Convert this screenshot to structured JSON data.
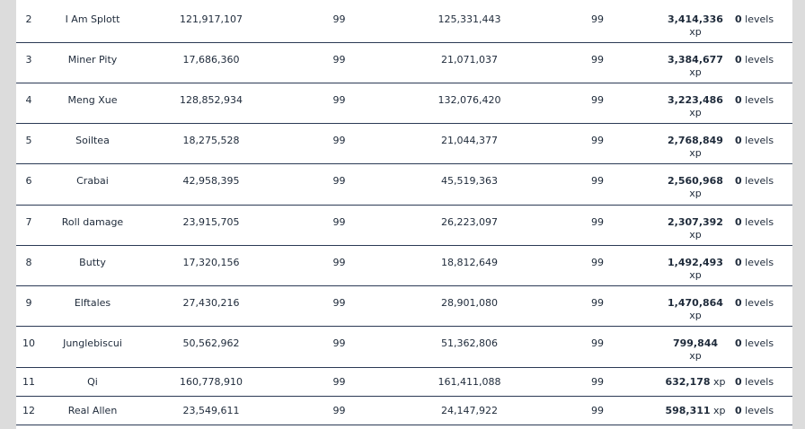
{
  "rows": [
    {
      "rank": "2",
      "name": "I Am Splott",
      "start_xp": "121,917,107",
      "start_level": "99",
      "end_xp": "125,331,443",
      "end_level": "99",
      "gained": "3,414,336",
      "gained_unit": "xp",
      "levels_num": "0",
      "levels_unit": "levels"
    },
    {
      "rank": "3",
      "name": "Miner Pity",
      "start_xp": "17,686,360",
      "start_level": "99",
      "end_xp": "21,071,037",
      "end_level": "99",
      "gained": "3,384,677",
      "gained_unit": "xp",
      "levels_num": "0",
      "levels_unit": "levels"
    },
    {
      "rank": "4",
      "name": "Meng Xue",
      "start_xp": "128,852,934",
      "start_level": "99",
      "end_xp": "132,076,420",
      "end_level": "99",
      "gained": "3,223,486",
      "gained_unit": "xp",
      "levels_num": "0",
      "levels_unit": "levels"
    },
    {
      "rank": "5",
      "name": "Soiltea",
      "start_xp": "18,275,528",
      "start_level": "99",
      "end_xp": "21,044,377",
      "end_level": "99",
      "gained": "2,768,849",
      "gained_unit": "xp",
      "levels_num": "0",
      "levels_unit": "levels"
    },
    {
      "rank": "6",
      "name": "Crabai",
      "start_xp": "42,958,395",
      "start_level": "99",
      "end_xp": "45,519,363",
      "end_level": "99",
      "gained": "2,560,968",
      "gained_unit": "xp",
      "levels_num": "0",
      "levels_unit": "levels"
    },
    {
      "rank": "7",
      "name": "Roll damage",
      "start_xp": "23,915,705",
      "start_level": "99",
      "end_xp": "26,223,097",
      "end_level": "99",
      "gained": "2,307,392",
      "gained_unit": "xp",
      "levels_num": "0",
      "levels_unit": "levels"
    },
    {
      "rank": "8",
      "name": "Butty",
      "start_xp": "17,320,156",
      "start_level": "99",
      "end_xp": "18,812,649",
      "end_level": "99",
      "gained": "1,492,493",
      "gained_unit": "xp",
      "levels_num": "0",
      "levels_unit": "levels"
    },
    {
      "rank": "9",
      "name": "Elftales",
      "start_xp": "27,430,216",
      "start_level": "99",
      "end_xp": "28,901,080",
      "end_level": "99",
      "gained": "1,470,864",
      "gained_unit": "xp",
      "levels_num": "0",
      "levels_unit": "levels"
    },
    {
      "rank": "10",
      "name": "Junglebiscui",
      "start_xp": "50,562,962",
      "start_level": "99",
      "end_xp": "51,362,806",
      "end_level": "99",
      "gained": "799,844",
      "gained_unit": "xp",
      "levels_num": "0",
      "levels_unit": "levels"
    },
    {
      "rank": "11",
      "name": "Qi",
      "start_xp": "160,778,910",
      "start_level": "99",
      "end_xp": "161,411,088",
      "end_level": "99",
      "gained": "632,178",
      "gained_unit": "xp",
      "levels_num": "0",
      "levels_unit": "levels"
    },
    {
      "rank": "12",
      "name": "Real Allen",
      "start_xp": "23,549,611",
      "start_level": "99",
      "end_xp": "24,147,922",
      "end_level": "99",
      "gained": "598,311",
      "gained_unit": "xp",
      "levels_num": "0",
      "levels_unit": "levels"
    }
  ]
}
